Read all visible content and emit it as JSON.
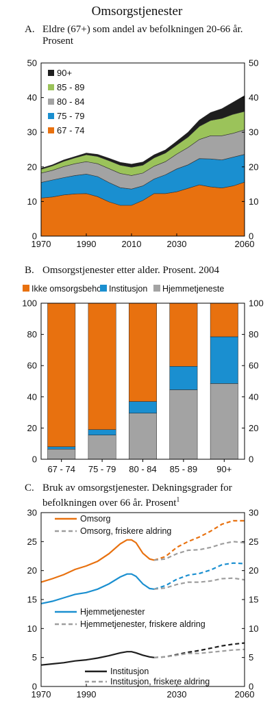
{
  "figure_title": "Omsorgstjenester",
  "chart_data": [
    {
      "panel": "A.",
      "title": "Eldre (67+) som andel av befolkningen 20-66 år. Prosent",
      "type": "area",
      "stacked": true,
      "x": [
        1970,
        1975,
        1980,
        1985,
        1990,
        1995,
        2000,
        2005,
        2010,
        2015,
        2020,
        2025,
        2030,
        2035,
        2040,
        2045,
        2050,
        2055,
        2060
      ],
      "series": [
        {
          "name": "67 - 74",
          "color": "#e8710f",
          "values": [
            11.0,
            11.3,
            11.9,
            12.2,
            12.3,
            11.4,
            9.9,
            8.9,
            8.9,
            10.3,
            12.3,
            12.3,
            12.8,
            13.8,
            14.8,
            14.2,
            13.9,
            14.5,
            15.6
          ]
        },
        {
          "name": "75 - 79",
          "color": "#1a8fd0",
          "values": [
            4.5,
            4.9,
            5.0,
            5.3,
            5.6,
            5.8,
            5.6,
            5.1,
            4.7,
            4.2,
            4.2,
            5.4,
            6.6,
            6.8,
            7.6,
            8.1,
            8.1,
            8.3,
            8.0
          ]
        },
        {
          "name": "80 - 84",
          "color": "#a3a3a3",
          "values": [
            2.7,
            2.8,
            3.2,
            3.4,
            3.6,
            3.7,
            4.0,
            4.1,
            3.9,
            3.7,
            3.7,
            3.8,
            4.3,
            5.0,
            5.5,
            6.7,
            7.0,
            6.9,
            7.1
          ]
        },
        {
          "name": "85 - 89",
          "color": "#9bc35a",
          "values": [
            1.1,
            1.3,
            1.5,
            1.7,
            2.0,
            2.1,
            2.3,
            2.4,
            2.4,
            2.3,
            2.4,
            2.5,
            2.6,
            3.0,
            3.8,
            4.4,
            5.0,
            5.5,
            5.3
          ]
        },
        {
          "name": "90+",
          "color": "#1e1e1e",
          "values": [
            0.3,
            0.3,
            0.4,
            0.4,
            0.5,
            0.6,
            0.7,
            0.8,
            0.9,
            0.9,
            0.9,
            0.9,
            1.1,
            1.4,
            1.8,
            2.3,
            2.8,
            3.5,
            4.6
          ]
        }
      ],
      "xticks": [
        "1970",
        "1990",
        "2010",
        "2030",
        "2060"
      ],
      "xtick_values": [
        1970,
        1990,
        2010,
        2030,
        2060
      ],
      "xlim": [
        1970,
        2060
      ],
      "ylim": [
        0,
        50
      ],
      "yticks": [
        0,
        10,
        20,
        30,
        40,
        50
      ],
      "legend": "top-left",
      "grid": false
    },
    {
      "panel": "B.",
      "title": "Omsorgstjenester etter alder. Prosent. 2004",
      "type": "bar",
      "stacked": true,
      "categories": [
        "67 - 74",
        "75 - 79",
        "80 - 84",
        "85 - 89",
        "90+"
      ],
      "series": [
        {
          "name": "Hjemmetjeneste",
          "color": "#a3a3a3",
          "values": [
            6.5,
            15.5,
            29.5,
            44.5,
            48.5
          ]
        },
        {
          "name": "Institusjon",
          "color": "#1a8fd0",
          "values": [
            1.5,
            3.5,
            7.5,
            15.0,
            30.0
          ]
        },
        {
          "name": "Ikke omsorgsbehov",
          "color": "#e8710f",
          "values": [
            92.0,
            81.0,
            63.0,
            40.5,
            21.5
          ]
        }
      ],
      "legend_order": [
        "Ikke omsorgsbehov",
        "Institusjon",
        "Hjemmetjeneste"
      ],
      "ylim": [
        0,
        100
      ],
      "yticks": [
        0,
        20,
        40,
        60,
        80,
        100
      ],
      "legend": "top",
      "grid": false
    },
    {
      "panel": "C.",
      "title": "Bruk av omsorgstjenester. Dekningsgrader for befolkningen over 66 år. Prosent",
      "title_sup": "1",
      "type": "line",
      "projection_start": 2020,
      "xticks": [
        "1970",
        "1990",
        "2030",
        "2060"
      ],
      "xtick_values": [
        1970,
        1990,
        2030,
        2060
      ],
      "xlim": [
        1970,
        2060
      ],
      "ylim": [
        0,
        30
      ],
      "yticks": [
        0,
        5,
        10,
        15,
        20,
        25,
        30
      ],
      "grid": false,
      "series": [
        {
          "name": "Omsorg",
          "color": "#e8710f",
          "x": [
            1970,
            1975,
            1980,
            1985,
            1990,
            1995,
            2000,
            2005,
            2008,
            2010,
            2012,
            2015,
            2018,
            2020,
            2025,
            2030,
            2035,
            2040,
            2045,
            2050,
            2055,
            2060
          ],
          "values": [
            18.0,
            18.6,
            19.3,
            20.2,
            20.8,
            21.6,
            22.9,
            24.6,
            25.3,
            25.3,
            24.8,
            23.0,
            22.0,
            21.8,
            22.4,
            24.0,
            25.0,
            25.8,
            26.8,
            28.0,
            28.6,
            28.6
          ]
        },
        {
          "name": "Omsorg, friskere aldring",
          "color": "#9e9e9e",
          "x": [
            2020,
            2025,
            2030,
            2035,
            2040,
            2045,
            2050,
            2055,
            2060
          ],
          "values": [
            21.8,
            22.0,
            22.9,
            23.5,
            23.6,
            24.0,
            24.6,
            25.0,
            24.8
          ]
        },
        {
          "name": "Hjemmetjenester",
          "color": "#1a8fd0",
          "x": [
            1970,
            1975,
            1980,
            1985,
            1990,
            1995,
            2000,
            2005,
            2008,
            2010,
            2012,
            2015,
            2018,
            2020,
            2025,
            2030,
            2035,
            2040,
            2045,
            2050,
            2055,
            2060
          ],
          "values": [
            14.3,
            14.7,
            15.3,
            15.9,
            16.2,
            16.8,
            17.7,
            18.9,
            19.4,
            19.4,
            19.0,
            17.7,
            16.9,
            16.8,
            17.4,
            18.5,
            19.2,
            19.5,
            20.1,
            21.0,
            21.3,
            21.2
          ]
        },
        {
          "name": "Hjemmetjenester, friskere aldring",
          "color": "#9e9e9e",
          "x": [
            2020,
            2025,
            2030,
            2035,
            2040,
            2045,
            2050,
            2055,
            2060
          ],
          "values": [
            16.8,
            17.0,
            17.6,
            18.0,
            18.0,
            18.2,
            18.6,
            18.7,
            18.4
          ]
        },
        {
          "name": "Institusjon",
          "color": "#1e1e1e",
          "x": [
            1970,
            1975,
            1980,
            1985,
            1990,
            1995,
            2000,
            2005,
            2008,
            2010,
            2012,
            2015,
            2018,
            2020,
            2025,
            2030,
            2035,
            2040,
            2045,
            2050,
            2055,
            2060
          ],
          "values": [
            3.7,
            3.9,
            4.1,
            4.4,
            4.6,
            4.9,
            5.3,
            5.8,
            6.0,
            6.0,
            5.8,
            5.4,
            5.1,
            5.0,
            5.1,
            5.5,
            5.9,
            6.2,
            6.6,
            7.0,
            7.3,
            7.5
          ]
        },
        {
          "name": "Institusjon, friskere aldring",
          "color": "#9e9e9e",
          "x": [
            2020,
            2025,
            2030,
            2035,
            2040,
            2045,
            2050,
            2055,
            2060
          ],
          "values": [
            5.0,
            5.1,
            5.4,
            5.7,
            5.7,
            5.9,
            6.1,
            6.3,
            6.4
          ]
        }
      ]
    }
  ]
}
